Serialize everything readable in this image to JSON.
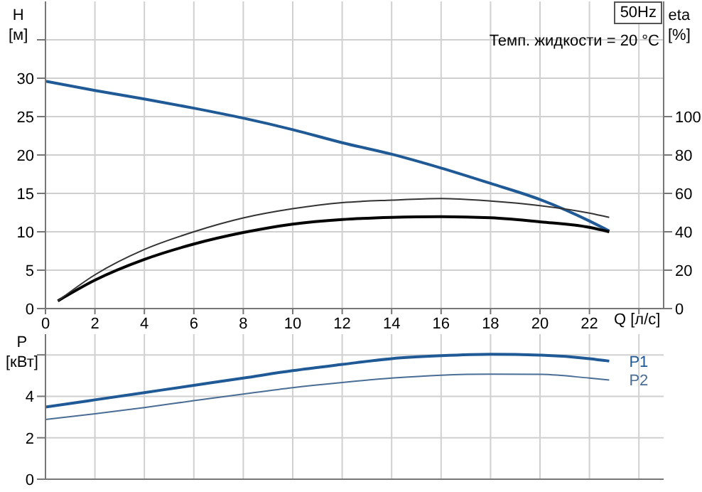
{
  "chart_data": [
    {
      "type": "line",
      "title": "50Hz",
      "annotations": [
        "Темп. жидкости = 20 °C"
      ],
      "xlabel": "Q [л/с]",
      "ylabel": "H [м]",
      "y2label": "eta [%]",
      "xlim": [
        0,
        25
      ],
      "xticks": [
        0,
        2,
        4,
        6,
        8,
        10,
        12,
        14,
        16,
        18,
        20,
        22,
        {
          "value": 24,
          "label": null
        }
      ],
      "ylim": [
        0,
        40
      ],
      "yticks": [
        0,
        5,
        10,
        15,
        20,
        25,
        30,
        {
          "value": 35,
          "label": null
        }
      ],
      "y2lim": [
        0,
        160
      ],
      "y2ticks": [
        0,
        20,
        40,
        60,
        80,
        100
      ],
      "grid": true,
      "marker": "none",
      "line_style": "solid",
      "series": [
        {
          "color": "#1f5a96",
          "x": [
            0,
            2,
            4,
            6,
            8,
            10,
            12,
            14,
            16,
            18,
            20,
            22,
            22.8
          ],
          "values": [
            29.6,
            28.4,
            27.3,
            26.1,
            24.8,
            23.3,
            21.6,
            20.1,
            18.3,
            16.3,
            14.2,
            11.4,
            10.1
          ]
        },
        {
          "color": "#000000",
          "axis": "y2",
          "x": [
            0.5,
            2,
            4,
            6,
            8,
            10,
            12,
            14,
            16,
            18,
            20,
            22,
            22.8
          ],
          "values": [
            4,
            14.8,
            25.6,
            33.6,
            39.6,
            44,
            46.4,
            47.5,
            47.9,
            47.3,
            45.2,
            42.3,
            40
          ]
        },
        {
          "color": "#333333",
          "axis": "y2",
          "x": [
            0.5,
            2,
            4,
            6,
            8,
            10,
            12,
            14,
            16,
            18,
            20,
            22,
            22.8
          ],
          "values": [
            4,
            17.6,
            30.8,
            40,
            47.2,
            52,
            55.2,
            56.5,
            57.3,
            56,
            53.6,
            49.7,
            47.5
          ]
        }
      ]
    },
    {
      "type": "line",
      "ylabel": "P [кВт]",
      "tick_labels": "y",
      "xlim": [
        0,
        25
      ],
      "xticks": [
        0,
        2,
        4,
        6,
        8,
        10,
        12,
        14,
        16,
        18,
        20,
        22,
        24
      ],
      "ylim": [
        0,
        7
      ],
      "yticks": [
        0,
        2,
        4,
        {
          "value": 6,
          "label": null
        }
      ],
      "grid": true,
      "marker": "none",
      "line_style": "solid",
      "series": [
        {
          "name": "P1",
          "color": "#1f5a96",
          "x": [
            0,
            2,
            4,
            6,
            8,
            10,
            12,
            14,
            16,
            18,
            20,
            22,
            22.8
          ],
          "values": [
            3.48,
            3.83,
            4.18,
            4.53,
            4.88,
            5.24,
            5.54,
            5.82,
            5.96,
            6.03,
            5.99,
            5.82,
            5.7
          ]
        },
        {
          "name": "P2",
          "color": "#4a6d96",
          "x": [
            0,
            2,
            4,
            6,
            8,
            10,
            12,
            14,
            16,
            18,
            20,
            22,
            22.8
          ],
          "values": [
            2.88,
            3.16,
            3.46,
            3.79,
            4.11,
            4.42,
            4.67,
            4.88,
            5.02,
            5.07,
            5.06,
            4.88,
            4.79
          ]
        }
      ]
    }
  ]
}
